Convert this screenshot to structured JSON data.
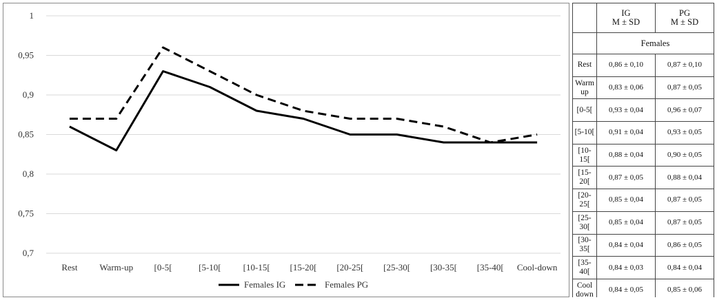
{
  "chart_data": {
    "type": "line",
    "categories": [
      "Rest",
      "Warm-up",
      "[0-5[",
      "[5-10[",
      "[10-15[",
      "[15-20[",
      "[20-25[",
      "[25-30[",
      "[30-35[",
      "[35-40[",
      "Cool-down"
    ],
    "series": [
      {
        "name": "Females IG",
        "values": [
          0.86,
          0.83,
          0.93,
          0.91,
          0.88,
          0.87,
          0.85,
          0.85,
          0.84,
          0.84,
          0.84
        ],
        "color": "#000000",
        "dash": "solid"
      },
      {
        "name": "Females PG",
        "values": [
          0.87,
          0.87,
          0.96,
          0.93,
          0.9,
          0.88,
          0.87,
          0.87,
          0.86,
          0.84,
          0.85
        ],
        "color": "#000000",
        "dash": "dashed"
      }
    ],
    "yticks": [
      "1",
      "0,95",
      "0,9",
      "0,85",
      "0,8",
      "0,75",
      "0,7"
    ],
    "ylim": [
      0.7,
      1.0
    ],
    "grid": true,
    "legend_position": "bottom-center"
  },
  "table": {
    "header": {
      "blank": "",
      "ig_label": "IG",
      "ig_stat": "M ± SD",
      "pg_label": "PG",
      "pg_stat": "M ± SD"
    },
    "group_label": "Females",
    "rows": [
      {
        "label": "Rest",
        "ig": "0,86 ± 0,10",
        "pg": "0,87 ± 0,10"
      },
      {
        "label": "Warm up",
        "ig": "0,83 ± 0,06",
        "pg": "0,87 ± 0,05"
      },
      {
        "label": "[0-5[",
        "ig": "0,93 ± 0,04",
        "pg": "0,96 ± 0,07"
      },
      {
        "label": "[5-10[",
        "ig": "0,91 ± 0,04",
        "pg": "0,93 ± 0,05"
      },
      {
        "label": "[10-15[",
        "ig": "0,88 ± 0,04",
        "pg": "0,90 ± 0,05"
      },
      {
        "label": "[15-20[",
        "ig": "0,87 ± 0,05",
        "pg": "0,88 ± 0,04"
      },
      {
        "label": "[20-25[",
        "ig": "0,85 ± 0,04",
        "pg": "0,87 ± 0,05"
      },
      {
        "label": "[25-30[",
        "ig": "0,85 ± 0,04",
        "pg": "0,87 ± 0,05"
      },
      {
        "label": "[30-35[",
        "ig": "0,84 ± 0,04",
        "pg": "0,86 ± 0,05"
      },
      {
        "label": "[35-40[",
        "ig": "0,84 ± 0,03",
        "pg": "0,84 ± 0,04"
      },
      {
        "label": "Cool down",
        "ig": "0,84 ± 0,05",
        "pg": "0,85 ± 0,06"
      }
    ]
  }
}
